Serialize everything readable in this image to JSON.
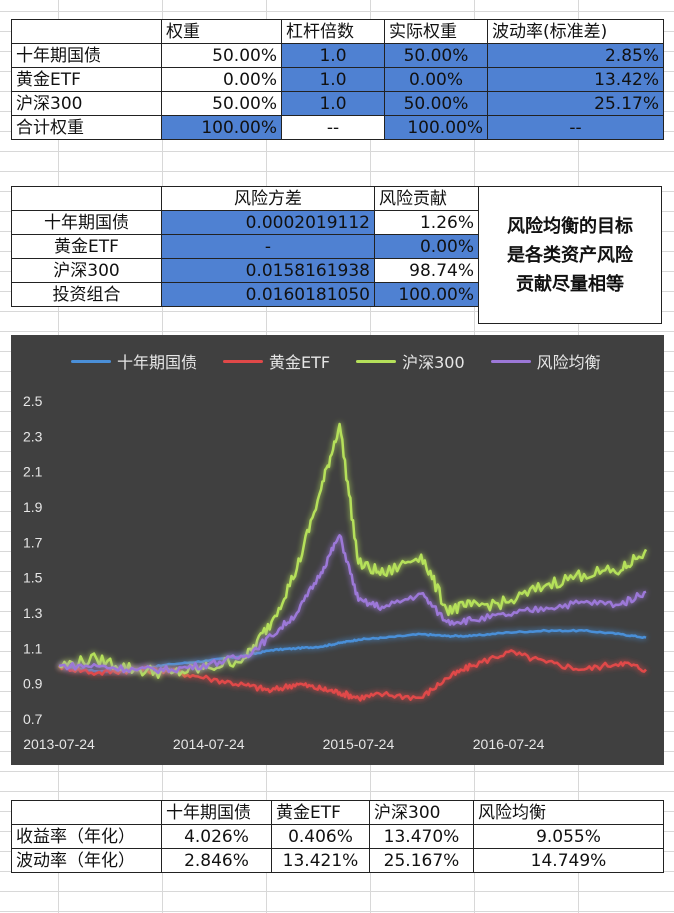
{
  "table1": {
    "headers": [
      "",
      "权重",
      "杠杆倍数",
      "实际权重",
      "波动率(标准差)"
    ],
    "rows": [
      {
        "name": "十年期国债",
        "weight": "50.00%",
        "leverage": "1.0",
        "actual": "50.00%",
        "vol": "2.85%"
      },
      {
        "name": "黄金ETF",
        "weight": "0.00%",
        "leverage": "1.0",
        "actual": "0.00%",
        "vol": "13.42%"
      },
      {
        "name": "沪深300",
        "weight": "50.00%",
        "leverage": "1.0",
        "actual": "50.00%",
        "vol": "25.17%"
      },
      {
        "name": "合计权重",
        "weight": "100.00%",
        "leverage": "--",
        "actual": "100.00%",
        "vol": "--"
      }
    ]
  },
  "table2": {
    "headers": [
      "",
      "风险方差",
      "风险贡献"
    ],
    "rows": [
      {
        "name": "十年期国债",
        "variance": "0.0002019112",
        "contribution": "1.26%"
      },
      {
        "name": "黄金ETF",
        "variance": "-",
        "contribution": "0.00%"
      },
      {
        "name": "沪深300",
        "variance": "0.0158161938",
        "contribution": "98.74%"
      },
      {
        "name": "投资组合",
        "variance": "0.0160181050",
        "contribution": "100.00%"
      }
    ],
    "note": [
      "风险均衡的目标",
      "是各类资产风险",
      "贡献尽量相等"
    ]
  },
  "chart_data": {
    "type": "line",
    "background": "#404040",
    "legend_position": "top",
    "ylim": [
      0.7,
      2.5
    ],
    "yticks": [
      "2.5",
      "2.3",
      "2.1",
      "1.9",
      "1.7",
      "1.5",
      "1.3",
      "1.1",
      "0.9",
      "0.7"
    ],
    "xticks": [
      "2013-07-24",
      "2014-07-24",
      "2015-07-24",
      "2016-07-24"
    ],
    "x": [
      "2013-07-24",
      "2013-10-24",
      "2014-01-24",
      "2014-04-24",
      "2014-07-24",
      "2014-10-24",
      "2014-12-24",
      "2015-02-24",
      "2015-04-24",
      "2015-06-08",
      "2015-07-24",
      "2015-09-24",
      "2015-12-24",
      "2016-02-24",
      "2016-04-24",
      "2016-07-24",
      "2016-10-24",
      "2017-01-24",
      "2017-04-24",
      "2017-06-24"
    ],
    "series": [
      {
        "name": "十年期国债",
        "color": "#4a8fd8",
        "values": [
          1.0,
          0.97,
          0.98,
          1.01,
          1.03,
          1.06,
          1.09,
          1.1,
          1.11,
          1.13,
          1.15,
          1.16,
          1.18,
          1.17,
          1.17,
          1.19,
          1.2,
          1.2,
          1.18,
          1.16
        ]
      },
      {
        "name": "黄金ETF",
        "color": "#e04848",
        "values": [
          1.0,
          0.96,
          0.98,
          0.97,
          0.93,
          0.89,
          0.86,
          0.9,
          0.87,
          0.85,
          0.82,
          0.84,
          0.82,
          0.93,
          1.0,
          1.08,
          1.02,
          0.98,
          1.02,
          0.98
        ]
      },
      {
        "name": "沪深300",
        "color": "#b5e05a",
        "values": [
          1.0,
          1.04,
          0.98,
          0.96,
          0.99,
          1.05,
          1.25,
          1.55,
          2.0,
          2.37,
          1.58,
          1.52,
          1.63,
          1.32,
          1.34,
          1.36,
          1.46,
          1.52,
          1.54,
          1.66
        ]
      },
      {
        "name": "风险均衡",
        "color": "#9c78d8",
        "values": [
          1.0,
          1.0,
          0.98,
          0.98,
          1.01,
          1.06,
          1.17,
          1.3,
          1.53,
          1.74,
          1.37,
          1.33,
          1.41,
          1.25,
          1.26,
          1.29,
          1.33,
          1.36,
          1.35,
          1.42
        ]
      }
    ]
  },
  "table3": {
    "headers": [
      "",
      "十年期国债",
      "黄金ETF",
      "沪深300",
      "风险均衡"
    ],
    "rows": [
      {
        "name": "收益率（年化）",
        "v1": "4.026%",
        "v2": "0.406%",
        "v3": "13.470%",
        "v4": "9.055%"
      },
      {
        "name": "波动率（年化）",
        "v1": "2.846%",
        "v2": "13.421%",
        "v3": "25.167%",
        "v4": "14.749%"
      }
    ]
  }
}
